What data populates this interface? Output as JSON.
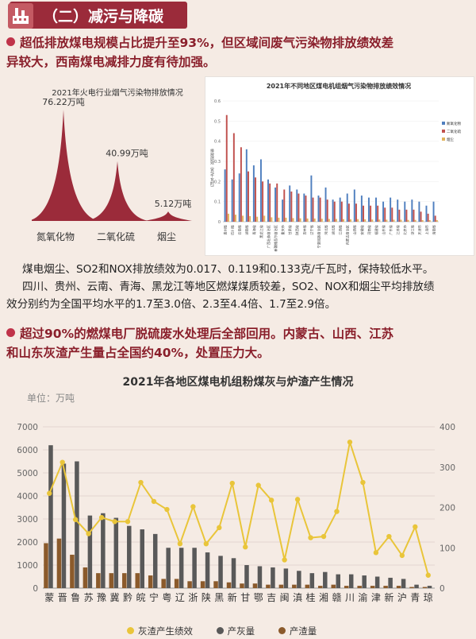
{
  "header": {
    "title": "（二）减污与降碳",
    "accent_color": "#9b2b3a"
  },
  "bullet1": {
    "line1": "超低排放煤电规模占比提升至93%，但区域间废气污染物排放绩效差",
    "line2": "异较大，西南煤电减排力度有待加强。"
  },
  "para1": {
    "line1": "煤电烟尘、SO2和NOX排放绩效为0.017、0.119和0.133克/千瓦时，保持较低水平。",
    "line2": "四川、贵州、云南、青海、黑龙江等地区燃煤煤质较差，SO2、NOX和烟尘平均排放绩",
    "line3": "效分别约为全国平均水平的1.7至3.0倍、2.3至4.4倍、1.7至2.9倍。"
  },
  "bullet2": {
    "line1": "超过90%的燃煤电厂脱硫废水处理后全部回用。内蒙古、山西、江苏",
    "line2": "和山东灰渣产生量占全国约40%，处置压力大。"
  },
  "chart_data": [
    {
      "type": "area",
      "title": "2021年火电行业烟气污染物排放情况",
      "categories": [
        "氮氧化物",
        "二氧化硫",
        "烟尘"
      ],
      "values": [
        76.22,
        40.99,
        5.12
      ],
      "value_labels": [
        "76.22万吨",
        "40.99万吨",
        "5.12万吨"
      ],
      "color": "#9b2b3a"
    },
    {
      "type": "bar",
      "title": "2021年不同地区煤电机组烟气污染物排放绩效情况",
      "ylabel": "排放绩效（克/千瓦时）",
      "ylim": [
        0,
        0.6
      ],
      "yticks": [
        "0",
        "0.1",
        "0.2",
        "0.3",
        "0.4",
        "0.5",
        "0.6"
      ],
      "categories": [
        "贵州省",
        "四川省",
        "云南省",
        "湖南省",
        "青海省",
        "黑龙江省",
        "广西壮族自治区",
        "新疆维吾尔自治区",
        "重庆市",
        "甘肃省",
        "陕西省",
        "吉林省",
        "辽宁省",
        "宁夏回族自治区",
        "河北省",
        "湖北省",
        "江西省",
        "内蒙古自治区",
        "山西省",
        "安徽省",
        "河南省",
        "福建省",
        "山东省",
        "广东省",
        "江苏省",
        "北京市",
        "浙江省",
        "天津市",
        "上海市",
        "海南省"
      ],
      "series": [
        {
          "name": "氮氧化物",
          "color": "#4f7fbf",
          "values": [
            0.26,
            0.21,
            0.24,
            0.36,
            0.28,
            0.31,
            0.21,
            0.17,
            0.11,
            0.18,
            0.16,
            0.14,
            0.23,
            0.13,
            0.17,
            0.11,
            0.12,
            0.14,
            0.16,
            0.13,
            0.12,
            0.12,
            0.1,
            0.12,
            0.11,
            0.1,
            0.11,
            0.1,
            0.08,
            0.1
          ]
        },
        {
          "name": "二氧化硫",
          "color": "#c0504d",
          "values": [
            0.53,
            0.44,
            0.37,
            0.25,
            0.22,
            0.2,
            0.19,
            0.19,
            0.16,
            0.15,
            0.14,
            0.13,
            0.12,
            0.12,
            0.11,
            0.1,
            0.1,
            0.09,
            0.09,
            0.08,
            0.08,
            0.08,
            0.07,
            0.07,
            0.06,
            0.06,
            0.06,
            0.05,
            0.04,
            0.03
          ]
        },
        {
          "name": "烟尘",
          "color": "#e1b35a",
          "values": [
            0.04,
            0.035,
            0.03,
            0.028,
            0.025,
            0.03,
            0.022,
            0.02,
            0.02,
            0.018,
            0.017,
            0.016,
            0.016,
            0.015,
            0.014,
            0.014,
            0.013,
            0.012,
            0.013,
            0.012,
            0.011,
            0.011,
            0.01,
            0.01,
            0.01,
            0.009,
            0.009,
            0.008,
            0.008,
            0.008
          ]
        }
      ]
    },
    {
      "type": "bar",
      "title": "2021年各地区煤电机组粉煤灰与炉渣产生情况",
      "unit_label": "单位：万吨",
      "ylim": [
        0,
        7000
      ],
      "yticks": [
        0,
        1000,
        2000,
        3000,
        4000,
        5000,
        6000,
        7000
      ],
      "y2lim": [
        0,
        400
      ],
      "y2ticks": [
        0,
        100,
        200,
        300,
        400
      ],
      "categories": [
        "蒙",
        "晋",
        "鲁",
        "苏",
        "豫",
        "冀",
        "黔",
        "皖",
        "宁",
        "粤",
        "辽",
        "浙",
        "陕",
        "黑",
        "新",
        "甘",
        "鄂",
        "吉",
        "闽",
        "滇",
        "桂",
        "湘",
        "赣",
        "川",
        "渝",
        "津",
        "新",
        "沪",
        "青",
        "琼"
      ],
      "series": [
        {
          "name": "产灰量",
          "color": "#595959",
          "values": [
            6200,
            5400,
            5500,
            3150,
            3250,
            3050,
            2700,
            2550,
            2350,
            1750,
            1750,
            1750,
            1550,
            1400,
            1300,
            1000,
            950,
            900,
            850,
            750,
            650,
            700,
            600,
            600,
            550,
            500,
            450,
            400,
            150,
            100
          ]
        },
        {
          "name": "产渣量",
          "color": "#8b5a2b",
          "values": [
            1950,
            2150,
            1450,
            900,
            650,
            650,
            650,
            650,
            550,
            400,
            400,
            300,
            300,
            300,
            250,
            200,
            200,
            150,
            150,
            150,
            150,
            100,
            150,
            100,
            100,
            100,
            100,
            100,
            50,
            50
          ]
        },
        {
          "name": "灰渣产生绩效",
          "color": "#e9c53a",
          "axis": "right",
          "values": [
            235,
            312,
            170,
            135,
            175,
            165,
            165,
            262,
            215,
            195,
            110,
            202,
            110,
            150,
            260,
            102,
            255,
            218,
            70,
            220,
            125,
            128,
            190,
            362,
            262,
            88,
            128,
            81,
            152,
            32
          ]
        }
      ],
      "legend_position": "bottom"
    }
  ]
}
